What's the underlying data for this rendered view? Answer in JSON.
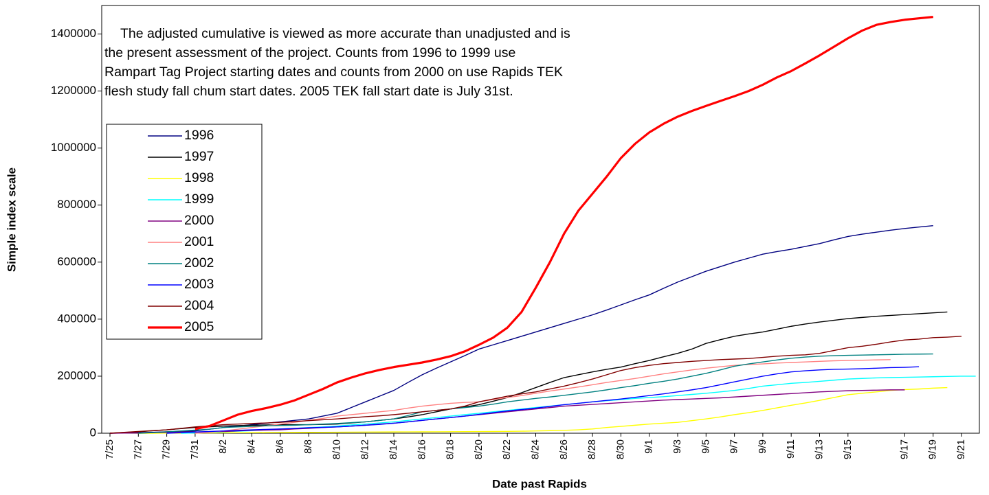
{
  "chart_data": {
    "type": "line",
    "annotation": [
      "The adjusted cumulative is viewed as more accurate than unadjusted and is",
      "the present assessment of the project. Counts from 1996 to 1999 use",
      "Rampart Tag Project starting dates and counts from 2000 on use Rapids TEK",
      "flesh study fall chum start dates. 2005 TEK fall start date is July 31st."
    ],
    "x_label": "Date past Rapids",
    "y_label": "Simple index scale",
    "ylim": [
      0,
      1500000
    ],
    "yticks": [
      0,
      200000,
      400000,
      600000,
      800000,
      1000000,
      1200000,
      1400000
    ],
    "grid": false,
    "legend": "upper-left",
    "categories": [
      "7/25",
      null,
      "7/27",
      null,
      "7/29",
      null,
      "7/31",
      null,
      "8/2",
      null,
      "8/4",
      null,
      "8/6",
      null,
      "8/8",
      null,
      "8/10",
      null,
      "8/12",
      null,
      "8/14",
      null,
      "8/16",
      null,
      "8/18",
      null,
      "8/20",
      null,
      "8/22",
      null,
      "8/24",
      null,
      "8/26",
      null,
      "8/28",
      null,
      "8/30",
      null,
      "9/1",
      null,
      "9/3",
      null,
      "9/5",
      null,
      "9/7",
      null,
      "9/9",
      null,
      "9/11",
      null,
      "9/13",
      null,
      "9/15",
      null,
      null,
      null,
      "9/17",
      null,
      "9/19",
      null,
      "9/21",
      null
    ],
    "series": [
      {
        "name": "1996",
        "color": "#000080",
        "width": 1.4,
        "values": [
          0,
          1000,
          2000,
          3500,
          5000,
          6500,
          8000,
          14000,
          20000,
          25000,
          30000,
          35000,
          40000,
          45000,
          50000,
          60000,
          70000,
          90000,
          110000,
          130000,
          150000,
          178000,
          205000,
          228000,
          250000,
          272000,
          295000,
          310000,
          325000,
          340000,
          355000,
          370000,
          385000,
          400000,
          415000,
          432000,
          450000,
          468000,
          485000,
          508000,
          530000,
          549000,
          568000,
          584000,
          600000,
          614000,
          628000,
          637000,
          645000,
          655000,
          665000,
          678000,
          690000,
          698000,
          705000,
          712000,
          718000,
          723000,
          728000,
          null,
          null,
          null
        ]
      },
      {
        "name": "1997",
        "color": "#000000",
        "width": 1.4,
        "values": [
          0,
          2500,
          5000,
          8500,
          12000,
          16000,
          20000,
          22500,
          25000,
          26500,
          28000,
          29000,
          30000,
          30000,
          30000,
          31000,
          32000,
          36000,
          40000,
          45000,
          50000,
          57000,
          65000,
          75000,
          85000,
          92000,
          100000,
          112000,
          125000,
          142000,
          160000,
          178000,
          195000,
          205000,
          215000,
          224000,
          232000,
          244000,
          255000,
          268000,
          280000,
          295000,
          315000,
          328000,
          340000,
          348000,
          355000,
          365000,
          375000,
          383000,
          390000,
          396000,
          402000,
          406000,
          410000,
          413000,
          416000,
          419000,
          422000,
          425000,
          null,
          null
        ]
      },
      {
        "name": "1998",
        "color": "#ffff00",
        "width": 1.4,
        "values": [
          null,
          null,
          0,
          0,
          500,
          800,
          1000,
          1200,
          1500,
          1700,
          2000,
          2200,
          2500,
          2700,
          3000,
          3200,
          3500,
          3700,
          4000,
          4200,
          4500,
          4600,
          4800,
          5000,
          5200,
          5500,
          5800,
          6000,
          6500,
          7000,
          8000,
          9000,
          10000,
          12000,
          15000,
          20000,
          24000,
          28000,
          32000,
          35000,
          38000,
          44000,
          50000,
          57000,
          65000,
          72000,
          80000,
          89000,
          98000,
          106000,
          115000,
          125000,
          135000,
          140000,
          145000,
          150000,
          153000,
          155000,
          158000,
          160000,
          null,
          null
        ]
      },
      {
        "name": "1999",
        "color": "#00ffff",
        "width": 1.4,
        "values": [
          null,
          null,
          null,
          null,
          null,
          0,
          1000,
          3000,
          5000,
          7000,
          9000,
          12000,
          15000,
          17000,
          20000,
          22000,
          25000,
          29000,
          32000,
          36000,
          40000,
          45000,
          50000,
          55000,
          60000,
          65000,
          70000,
          75000,
          80000,
          85000,
          90000,
          95000,
          100000,
          105000,
          110000,
          114000,
          118000,
          122000,
          125000,
          128000,
          132000,
          136000,
          140000,
          145000,
          150000,
          157000,
          165000,
          170000,
          175000,
          178000,
          182000,
          186000,
          190000,
          192000,
          194000,
          195000,
          196000,
          197000,
          198000,
          199000,
          200000,
          200000
        ]
      },
      {
        "name": "2000",
        "color": "#800080",
        "width": 1.4,
        "values": [
          0,
          500,
          1000,
          2000,
          3000,
          4000,
          4500,
          5000,
          6000,
          8000,
          10000,
          11000,
          12000,
          15000,
          17000,
          20000,
          22000,
          25000,
          28000,
          32000,
          35000,
          40000,
          45000,
          50000,
          55000,
          60000,
          65000,
          70000,
          75000,
          80000,
          85000,
          90000,
          95000,
          98000,
          101000,
          104000,
          107000,
          110000,
          113000,
          116000,
          118000,
          120000,
          122000,
          124000,
          127000,
          130000,
          133000,
          136000,
          139000,
          142000,
          145000,
          147000,
          149000,
          150000,
          151000,
          152000,
          152000,
          null,
          null,
          null,
          null,
          null
        ]
      },
      {
        "name": "2001",
        "color": "#ff8080",
        "width": 1.4,
        "values": [
          null,
          null,
          null,
          null,
          null,
          null,
          0,
          3000,
          8000,
          14000,
          20000,
          26000,
          32000,
          38000,
          45000,
          52000,
          60000,
          65000,
          70000,
          75000,
          80000,
          88000,
          95000,
          100000,
          105000,
          108000,
          110000,
          118000,
          125000,
          132000,
          140000,
          148000,
          155000,
          162000,
          170000,
          178000,
          185000,
          192000,
          200000,
          208000,
          215000,
          222000,
          228000,
          233000,
          238000,
          241000,
          243000,
          246000,
          248000,
          250000,
          252000,
          254000,
          255000,
          256000,
          257000,
          258000,
          null,
          null,
          null,
          null,
          null,
          null
        ]
      },
      {
        "name": "2002",
        "color": "#008080",
        "width": 1.4,
        "values": [
          null,
          null,
          0,
          2000,
          5000,
          8000,
          11000,
          14000,
          20000,
          22000,
          24000,
          26000,
          27000,
          28000,
          30000,
          32000,
          34000,
          37000,
          40000,
          45000,
          50000,
          62000,
          75000,
          80000,
          85000,
          90000,
          95000,
          102000,
          110000,
          116000,
          122000,
          127000,
          133000,
          139000,
          145000,
          152000,
          160000,
          167000,
          175000,
          182000,
          190000,
          200000,
          210000,
          222000,
          235000,
          243000,
          250000,
          257000,
          263000,
          267000,
          270000,
          272000,
          273000,
          274000,
          275000,
          276000,
          277000,
          277500,
          278000,
          null,
          null,
          null
        ]
      },
      {
        "name": "2003",
        "color": "#0000ff",
        "width": 1.4,
        "values": [
          null,
          null,
          null,
          null,
          0,
          2000,
          4000,
          6000,
          8000,
          10000,
          12000,
          13500,
          15000,
          17000,
          19000,
          20500,
          22000,
          25000,
          28000,
          31000,
          35000,
          40000,
          45000,
          50000,
          55000,
          60000,
          66000,
          72000,
          78000,
          83000,
          88000,
          94000,
          100000,
          105000,
          110000,
          115000,
          120000,
          126000,
          132000,
          138000,
          145000,
          152000,
          160000,
          170000,
          180000,
          190000,
          200000,
          208000,
          215000,
          219000,
          222000,
          224000,
          225000,
          226000,
          228000,
          230000,
          231000,
          233000,
          null,
          null,
          null,
          null
        ]
      },
      {
        "name": "2004",
        "color": "#800000",
        "width": 1.4,
        "values": [
          0,
          3000,
          6000,
          9000,
          12000,
          17000,
          22000,
          26000,
          30000,
          32000,
          34000,
          36000,
          38000,
          41000,
          44000,
          47000,
          50000,
          54000,
          58000,
          61000,
          65000,
          70000,
          75000,
          80000,
          85000,
          95000,
          110000,
          120000,
          130000,
          138000,
          145000,
          155000,
          165000,
          177000,
          190000,
          205000,
          220000,
          230000,
          238000,
          244000,
          248000,
          252000,
          255000,
          258000,
          260000,
          262000,
          266000,
          270000,
          273000,
          275000,
          280000,
          290000,
          300000,
          305000,
          312000,
          320000,
          327000,
          330000,
          335000,
          337000,
          340000,
          null
        ]
      },
      {
        "name": "2005",
        "color": "#ff0000",
        "width": 3.2,
        "values": [
          null,
          null,
          null,
          null,
          null,
          null,
          15000,
          25000,
          45000,
          65000,
          78000,
          88000,
          100000,
          115000,
          135000,
          155000,
          178000,
          195000,
          210000,
          222000,
          232000,
          240000,
          248000,
          258000,
          270000,
          287000,
          310000,
          335000,
          370000,
          425000,
          510000,
          600000,
          700000,
          780000,
          840000,
          900000,
          965000,
          1015000,
          1055000,
          1085000,
          1110000,
          1130000,
          1148000,
          1165000,
          1182000,
          1200000,
          1222000,
          1248000,
          1270000,
          1297000,
          1325000,
          1355000,
          1385000,
          1412000,
          1432000,
          1442000,
          1450000,
          1455000,
          1460000,
          null,
          null,
          null
        ]
      }
    ]
  }
}
